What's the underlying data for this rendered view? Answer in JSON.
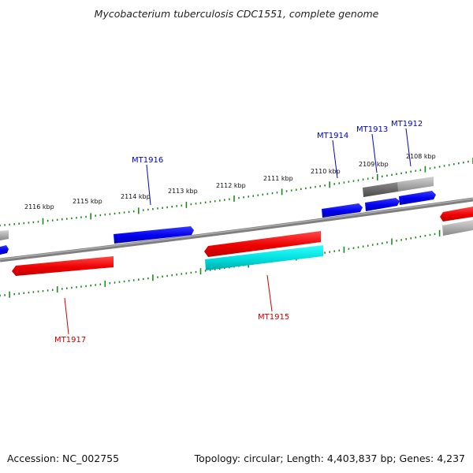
{
  "title": "Mycobacterium tuberculosis CDC1551, complete genome",
  "footer": {
    "accession": "Accession: NC_002755",
    "genome_info": "Topology: circular; Length: 4,403,837 bp; Genes: 4,237"
  },
  "colors": {
    "backbone": "#7f7f7f",
    "ruler": "#1e8a1e",
    "forward_gene": "#0000ee",
    "reverse_gene": "#ee0000",
    "cyan_gene": "#00dddd",
    "grey_gene": "#aaaaaa",
    "dark_grey_gene": "#666666"
  },
  "kbp_ticks": [
    {
      "label": "2116 kbp",
      "kbp": 2116
    },
    {
      "label": "2115 kbp",
      "kbp": 2115
    },
    {
      "label": "2114 kbp",
      "kbp": 2114
    },
    {
      "label": "2113 kbp",
      "kbp": 2113
    },
    {
      "label": "2112 kbp",
      "kbp": 2112
    },
    {
      "label": "2111 kbp",
      "kbp": 2111
    },
    {
      "label": "2110 kbp",
      "kbp": 2110
    },
    {
      "label": "2109 kbp",
      "kbp": 2109
    },
    {
      "label": "2108 kbp",
      "kbp": 2108
    }
  ],
  "gene_labels": [
    {
      "name": "MT1916",
      "strand": "forward"
    },
    {
      "name": "MT1914",
      "strand": "forward"
    },
    {
      "name": "MT1913",
      "strand": "forward"
    },
    {
      "name": "MT1912",
      "strand": "forward"
    },
    {
      "name": "MT1915",
      "strand": "reverse"
    },
    {
      "name": "MT1917",
      "strand": "reverse"
    }
  ]
}
